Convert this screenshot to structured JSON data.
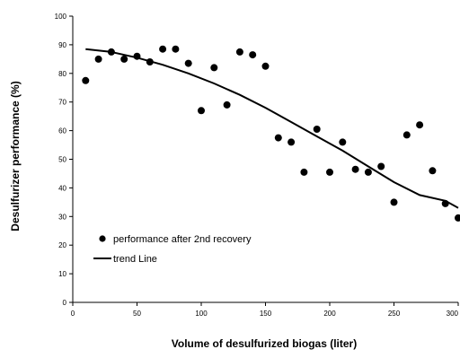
{
  "chart_data": {
    "type": "scatter",
    "title": "",
    "xlabel": "Volume of desulfurized biogas (liter)",
    "ylabel": "Desulfurizer performance (%)",
    "xlim": [
      0,
      300
    ],
    "ylim": [
      0,
      100
    ],
    "x_ticks": [
      "0",
      "50",
      "100",
      "150",
      "200",
      "250",
      "300"
    ],
    "y_ticks": [
      "0",
      "10",
      "20",
      "30",
      "40",
      "50",
      "60",
      "70",
      "80",
      "90",
      "100"
    ],
    "grid": false,
    "legend_position": "lower-left",
    "series": [
      {
        "name": "performance after 2nd recovery",
        "kind": "scatter",
        "marker": "circle",
        "color": "#000000",
        "points": [
          [
            10,
            77.5
          ],
          [
            20,
            85
          ],
          [
            30,
            87.5
          ],
          [
            40,
            85
          ],
          [
            50,
            86
          ],
          [
            60,
            84
          ],
          [
            70,
            88.5
          ],
          [
            80,
            88.5
          ],
          [
            90,
            83.5
          ],
          [
            100,
            67
          ],
          [
            110,
            82
          ],
          [
            120,
            69
          ],
          [
            130,
            87.5
          ],
          [
            140,
            86.5
          ],
          [
            150,
            82.5
          ],
          [
            160,
            57.5
          ],
          [
            170,
            56
          ],
          [
            180,
            45.5
          ],
          [
            190,
            60.5
          ],
          [
            200,
            45.5
          ],
          [
            210,
            56
          ],
          [
            220,
            46.5
          ],
          [
            230,
            45.5
          ],
          [
            240,
            47.5
          ],
          [
            250,
            35
          ],
          [
            260,
            58.5
          ],
          [
            270,
            62
          ],
          [
            280,
            46
          ],
          [
            290,
            34.5
          ],
          [
            300,
            29.5
          ]
        ]
      },
      {
        "name": "trend Line",
        "kind": "line",
        "color": "#000000",
        "points": [
          [
            10,
            88.5
          ],
          [
            30,
            87.5
          ],
          [
            50,
            85.5
          ],
          [
            70,
            83
          ],
          [
            90,
            80
          ],
          [
            110,
            76.5
          ],
          [
            130,
            72.5
          ],
          [
            150,
            68
          ],
          [
            170,
            63
          ],
          [
            190,
            58
          ],
          [
            210,
            53
          ],
          [
            230,
            47.5
          ],
          [
            250,
            42
          ],
          [
            270,
            37.5
          ],
          [
            290,
            35.5
          ],
          [
            300,
            33
          ]
        ]
      }
    ]
  }
}
